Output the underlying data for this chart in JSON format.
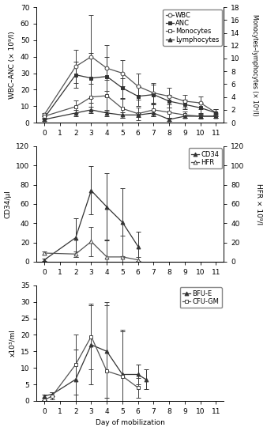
{
  "panel1": {
    "days_wbc_anc": [
      0,
      2,
      3,
      4,
      5,
      6,
      7,
      8,
      9,
      10,
      11
    ],
    "wbc": [
      5,
      34,
      40,
      33,
      30,
      22,
      18,
      16,
      13,
      12,
      6
    ],
    "wbc_err": [
      1,
      10,
      25,
      14,
      8,
      8,
      6,
      5,
      4,
      4,
      2
    ],
    "anc": [
      3,
      29,
      27,
      28,
      21,
      16,
      17,
      13,
      11,
      9,
      6
    ],
    "anc_err": [
      1,
      8,
      15,
      12,
      6,
      6,
      6,
      4,
      3,
      3,
      2
    ],
    "days_mono_lymph": [
      0,
      2,
      3,
      4,
      5,
      6,
      7,
      8,
      9,
      10,
      11
    ],
    "monocytes": [
      1.0,
      2.5,
      4.0,
      4.2,
      2.2,
      1.4,
      2.0,
      1.6,
      1.2,
      1.0,
      1.0
    ],
    "monocytes_err": [
      0.3,
      1.0,
      2.0,
      2.5,
      1.5,
      1.0,
      1.0,
      0.8,
      0.5,
      0.4,
      0.3
    ],
    "lymphocytes": [
      0.5,
      1.5,
      2.0,
      1.5,
      1.2,
      1.2,
      1.5,
      0.5,
      1.0,
      1.0,
      1.0
    ],
    "lymphocytes_err": [
      0.2,
      0.5,
      0.5,
      0.5,
      0.4,
      0.3,
      0.5,
      0.3,
      0.3,
      0.3,
      0.3
    ],
    "ylabel_left": "WBC–ANC (× 10⁹/l)",
    "ylabel_right": "Monocytes–lymphocytes (× 10⁹/l)",
    "ylim_left": [
      0,
      70
    ],
    "ylim_right": [
      0,
      18
    ],
    "yticks_left": [
      0,
      10,
      20,
      30,
      40,
      50,
      60,
      70
    ],
    "yticks_right": [
      0,
      2,
      4,
      6,
      8,
      10,
      12,
      14,
      16,
      18
    ]
  },
  "panel2": {
    "days_cd34": [
      0,
      2,
      3,
      4,
      5,
      6
    ],
    "cd34": [
      2,
      25,
      74,
      57,
      41,
      16
    ],
    "cd34_err": [
      1,
      20,
      25,
      35,
      35,
      15
    ],
    "days_hfr": [
      0,
      2,
      3,
      4,
      5,
      6
    ],
    "hfr": [
      9,
      8,
      21,
      5,
      5,
      2
    ],
    "hfr_err": [
      2,
      3,
      15,
      18,
      22,
      3
    ],
    "ylabel_left": "CD34/µl",
    "ylabel_right": "HFR × 10⁹/l",
    "ylim_left": [
      0,
      120
    ],
    "ylim_right": [
      0,
      120
    ],
    "yticks_left": [
      0,
      20,
      40,
      60,
      80,
      100,
      120
    ],
    "yticks_right": [
      0,
      20,
      40,
      60,
      80,
      100,
      120
    ]
  },
  "panel3": {
    "days_bfue": [
      0,
      0.5,
      2,
      3,
      4,
      5,
      6,
      6.5
    ],
    "bfue": [
      1.5,
      2.0,
      6.5,
      17.0,
      15.0,
      8.0,
      8.0,
      6.5
    ],
    "bfue_err": [
      0.5,
      0.5,
      9.0,
      12.0,
      14.0,
      13.0,
      3.0,
      3.0
    ],
    "days_cfugm": [
      0,
      0.5,
      2,
      3,
      4,
      5,
      6
    ],
    "cfugm": [
      0.2,
      1.5,
      11.0,
      19.5,
      9.0,
      7.5,
      4.0
    ],
    "cfugm_err": [
      0.1,
      1.0,
      9.0,
      10.0,
      21.0,
      14.0,
      3.0
    ],
    "ylabel_left": "x10³/ml",
    "ylim_left": [
      0,
      35
    ],
    "yticks_left": [
      0,
      5,
      10,
      15,
      20,
      25,
      30,
      35
    ]
  },
  "xlabel": "Day of mobilization",
  "xticks": [
    0,
    1,
    2,
    3,
    4,
    5,
    6,
    7,
    8,
    9,
    10,
    11
  ],
  "xlim": [
    -0.5,
    11.5
  ]
}
